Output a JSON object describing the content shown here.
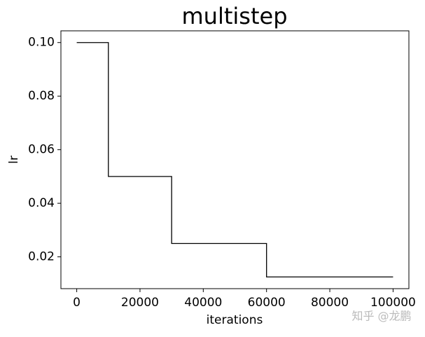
{
  "chart_data": {
    "type": "line",
    "title": "multistep",
    "x_label": "iterations",
    "y_label": "lr",
    "series": [
      {
        "name": "lr",
        "color": "#000000",
        "x": [
          0,
          10000,
          10000,
          30000,
          30000,
          60000,
          60000,
          100000
        ],
        "values": [
          0.1,
          0.1,
          0.05,
          0.05,
          0.025,
          0.025,
          0.0125,
          0.0125
        ]
      }
    ],
    "xlim": [
      -5000,
      105000
    ],
    "xticks": [
      0,
      20000,
      40000,
      60000,
      80000,
      100000
    ],
    "ylim": [
      0.008125,
      0.104375
    ],
    "yticks": [
      0.02,
      0.04,
      0.06,
      0.08,
      {
        "value": 0.1,
        "label": "0.10"
      }
    ],
    "grid": false,
    "annotations": [
      "知乎 @龙鹏"
    ]
  }
}
